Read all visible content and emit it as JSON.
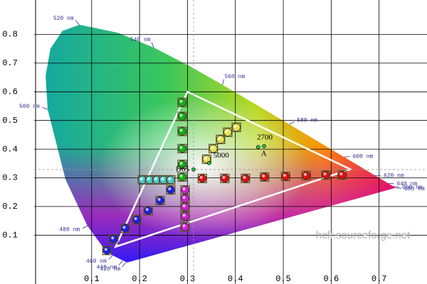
{
  "chart_data": {
    "type": "chromaticity",
    "xlim": [
      -0.02,
      0.8
    ],
    "ylim": [
      -0.07,
      0.92
    ],
    "xticks": [
      0.1,
      0.2,
      0.3,
      0.4,
      0.5,
      0.6,
      0.7
    ],
    "yticks": [
      0.1,
      0.2,
      0.3,
      0.4,
      0.5,
      0.6,
      0.7,
      0.8
    ],
    "grid": true,
    "watermark": "hcfr.sourceforge.net",
    "spectral_locus": {
      "x": [
        0.1741,
        0.144,
        0.1241,
        0.0913,
        0.0454,
        0.0082,
        0.0039,
        0.0139,
        0.0389,
        0.0743,
        0.1547,
        0.2296,
        0.3016,
        0.3731,
        0.4441,
        0.5125,
        0.627,
        0.6915,
        0.719,
        0.7347
      ],
      "y": [
        0.005,
        0.0297,
        0.0578,
        0.1327,
        0.295,
        0.5384,
        0.6548,
        0.7502,
        0.812,
        0.8338,
        0.8059,
        0.7543,
        0.6923,
        0.6245,
        0.5547,
        0.4866,
        0.3725,
        0.3083,
        0.2809,
        0.2653
      ]
    },
    "wavelengths": [
      {
        "label": "520 nm",
        "x": 0.0743,
        "y": 0.8338
      },
      {
        "label": "540 nm",
        "x": 0.2296,
        "y": 0.7543
      },
      {
        "label": "560 nm",
        "x": 0.3731,
        "y": 0.6245
      },
      {
        "label": "580 nm",
        "x": 0.5125,
        "y": 0.4866
      },
      {
        "label": "600 nm",
        "x": 0.627,
        "y": 0.3725
      },
      {
        "label": "620 nm",
        "x": 0.6915,
        "y": 0.3083
      },
      {
        "label": "640 nm",
        "x": 0.719,
        "y": 0.2809
      },
      {
        "label": "660 nm",
        "x": 0.73,
        "y": 0.27
      },
      {
        "label": "680 nm",
        "x": 0.7347,
        "y": 0.2653
      },
      {
        "label": "500 nm",
        "x": 0.0082,
        "y": 0.5384
      },
      {
        "label": "480 nm",
        "x": 0.0913,
        "y": 0.1327
      },
      {
        "label": "460 nm",
        "x": 0.144,
        "y": 0.0297
      },
      {
        "label": "440 nm",
        "x": 0.1644,
        "y": 0.0109
      },
      {
        "label": "420 nm",
        "x": 0.1714,
        "y": 0.0051
      }
    ],
    "reference_gamut": {
      "x": [
        0.64,
        0.3,
        0.15
      ],
      "y": [
        0.33,
        0.6,
        0.06
      ]
    },
    "series": [
      {
        "color": "#e01010",
        "x": [
          0.331,
          0.378,
          0.421,
          0.461,
          0.505,
          0.548,
          0.589,
          0.623
        ],
        "y": [
          0.298,
          0.298,
          0.298,
          0.303,
          0.305,
          0.308,
          0.31,
          0.31
        ]
      },
      {
        "color": "#12b012",
        "x": [
          0.289,
          0.289,
          0.289,
          0.289,
          0.289,
          0.289
        ],
        "y": [
          0.563,
          0.514,
          0.462,
          0.402,
          0.347,
          0.303
        ]
      },
      {
        "color": "#2020e0",
        "x": [
          0.265,
          0.243,
          0.218,
          0.194,
          0.17,
          0.146,
          0.132
        ],
        "y": [
          0.258,
          0.221,
          0.186,
          0.154,
          0.124,
          0.087,
          0.047
        ]
      },
      {
        "color": "#50c8c8",
        "x": [
          0.206,
          0.221,
          0.236,
          0.25,
          0.265
        ],
        "y": [
          0.293,
          0.293,
          0.293,
          0.293,
          0.293
        ]
      },
      {
        "color": "#d020d0",
        "x": [
          0.295,
          0.295,
          0.295,
          0.295,
          0.295
        ],
        "y": [
          0.258,
          0.228,
          0.199,
          0.166,
          0.129
        ]
      },
      {
        "color": "#e8e050",
        "x": [
          0.34,
          0.354,
          0.369,
          0.384,
          0.402
        ],
        "y": [
          0.365,
          0.402,
          0.434,
          0.459,
          0.476
        ]
      }
    ],
    "white_points": [
      {
        "label": "D65",
        "x": 0.3127,
        "y": 0.329
      },
      {
        "label": "5000",
        "x": 0.3451,
        "y": 0.3516
      },
      {
        "label": "2700",
        "x": 0.4599,
        "y": 0.4106
      },
      {
        "label": "A",
        "x": 0.4476,
        "y": 0.4074
      }
    ]
  }
}
